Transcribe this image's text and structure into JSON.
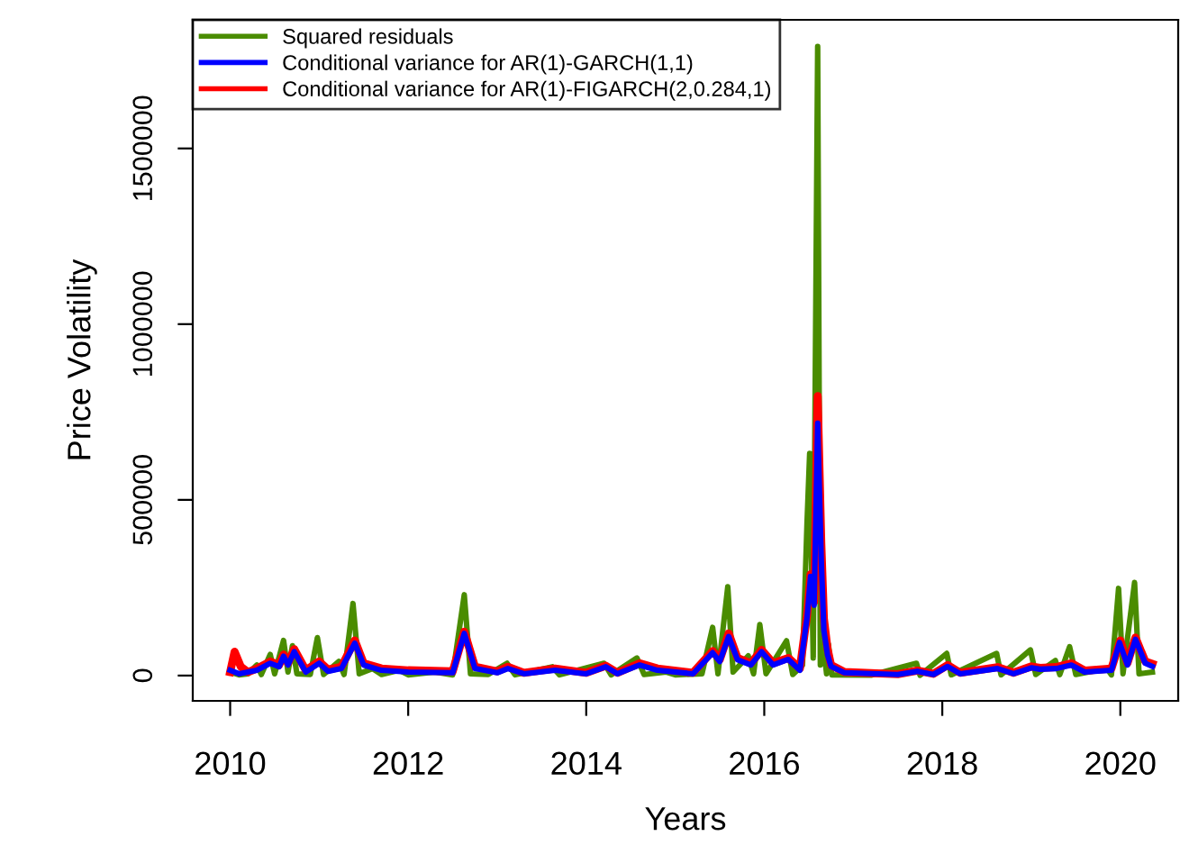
{
  "chart_data": {
    "type": "line",
    "xlabel": "Years",
    "ylabel": "Price Volatility",
    "xlim": [
      2009.58,
      2020.65
    ],
    "xticks": [
      2010,
      2012,
      2014,
      2016,
      2018,
      2020
    ],
    "ylim": [
      -72000,
      1866000
    ],
    "yticks": [
      0,
      500000,
      1000000,
      1500000
    ],
    "grid": false,
    "legend": "top left",
    "line_style": "solid",
    "marker": "none",
    "series": [
      {
        "name": "Squared residuals",
        "color": "#4a8c00",
        "x": [
          2010.0,
          2010.1,
          2010.2,
          2010.3,
          2010.35,
          2010.45,
          2010.5,
          2010.6,
          2010.65,
          2010.7,
          2010.75,
          2010.9,
          2010.98,
          2011.05,
          2011.22,
          2011.28,
          2011.38,
          2011.45,
          2011.6,
          2011.7,
          2011.9,
          2012.0,
          2012.3,
          2012.5,
          2012.63,
          2012.7,
          2012.9,
          2013.11,
          2013.2,
          2013.62,
          2013.7,
          2014.2,
          2014.28,
          2014.57,
          2014.65,
          2014.9,
          2015.0,
          2015.3,
          2015.42,
          2015.48,
          2015.59,
          2015.65,
          2015.82,
          2015.88,
          2015.95,
          2016.02,
          2016.25,
          2016.32,
          2016.43,
          2016.48,
          2016.51,
          2016.55,
          2016.6,
          2016.63,
          2016.66,
          2016.7,
          2016.72,
          2016.76,
          2017.2,
          2017.71,
          2017.75,
          2018.05,
          2018.1,
          2018.61,
          2018.66,
          2018.99,
          2019.05,
          2019.27,
          2019.32,
          2019.43,
          2019.5,
          2019.85,
          2019.9,
          2019.98,
          2020.03,
          2020.16,
          2020.21,
          2020.36
        ],
        "values": [
          10000,
          2000,
          5000,
          30000,
          3000,
          60000,
          5000,
          100000,
          10000,
          85000,
          5000,
          3000,
          108000,
          3000,
          40000,
          3000,
          205000,
          5000,
          20000,
          3000,
          15000,
          2000,
          10000,
          2000,
          230000,
          5000,
          3000,
          35000,
          2000,
          25000,
          2000,
          35000,
          2000,
          50000,
          3000,
          10000,
          2000,
          5000,
          137000,
          5000,
          253000,
          10000,
          56000,
          5000,
          145000,
          5000,
          99000,
          3000,
          30000,
          432000,
          632000,
          50000,
          1790000,
          30000,
          94000,
          5000,
          90000,
          2000,
          1000,
          35000,
          1000,
          63000,
          2000,
          63000,
          2000,
          73000,
          3000,
          43000,
          3000,
          82000,
          3000,
          20000,
          2000,
          248000,
          5000,
          265000,
          5000,
          10000
        ]
      },
      {
        "name": "Conditional variance for AR(1)-GARCH(1,1)",
        "color": "#0000ff",
        "x": [
          2010.0,
          2010.1,
          2010.3,
          2010.45,
          2010.55,
          2010.6,
          2010.65,
          2010.72,
          2010.85,
          2011.0,
          2011.1,
          2011.25,
          2011.4,
          2011.5,
          2011.7,
          2012.0,
          2012.5,
          2012.63,
          2012.75,
          2013.0,
          2013.12,
          2013.3,
          2013.65,
          2014.0,
          2014.22,
          2014.35,
          2014.6,
          2014.8,
          2015.2,
          2015.42,
          2015.5,
          2015.6,
          2015.7,
          2015.85,
          2015.97,
          2016.1,
          2016.27,
          2016.4,
          2016.48,
          2016.52,
          2016.56,
          2016.6,
          2016.64,
          2016.67,
          2016.71,
          2016.75,
          2016.9,
          2017.5,
          2017.72,
          2017.9,
          2018.06,
          2018.2,
          2018.62,
          2018.8,
          2019.0,
          2019.1,
          2019.28,
          2019.45,
          2019.6,
          2019.9,
          2019.99,
          2020.08,
          2020.17,
          2020.28,
          2020.36
        ],
        "values": [
          15000,
          5000,
          15000,
          35000,
          25000,
          55000,
          30000,
          68000,
          10000,
          35000,
          12000,
          20000,
          92000,
          30000,
          15000,
          10000,
          8000,
          120000,
          20000,
          8000,
          20000,
          5000,
          15000,
          5000,
          25000,
          5000,
          30000,
          15000,
          5000,
          65000,
          40000,
          111000,
          45000,
          30000,
          68000,
          30000,
          46000,
          15000,
          164000,
          282000,
          200000,
          718000,
          333000,
          128000,
          60000,
          26000,
          8000,
          3000,
          12000,
          3000,
          26000,
          5000,
          20000,
          5000,
          22000,
          18000,
          20000,
          30000,
          10000,
          15000,
          94000,
          30000,
          103000,
          35000,
          26000
        ]
      },
      {
        "name": "Conditional variance for AR(1)-FIGARCH(2,0.284,1)",
        "color": "#ff0000",
        "x": [
          2010.0,
          2010.05,
          2010.12,
          2010.2,
          2010.3,
          2010.45,
          2010.55,
          2010.6,
          2010.65,
          2010.72,
          2010.85,
          2011.0,
          2011.1,
          2011.25,
          2011.4,
          2011.5,
          2011.7,
          2012.0,
          2012.5,
          2012.63,
          2012.75,
          2013.0,
          2013.12,
          2013.3,
          2013.65,
          2014.0,
          2014.22,
          2014.35,
          2014.6,
          2014.8,
          2015.2,
          2015.42,
          2015.5,
          2015.6,
          2015.7,
          2015.85,
          2015.97,
          2016.1,
          2016.27,
          2016.4,
          2016.48,
          2016.52,
          2016.56,
          2016.6,
          2016.64,
          2016.67,
          2016.71,
          2016.75,
          2016.9,
          2017.5,
          2017.72,
          2017.9,
          2018.06,
          2018.2,
          2018.62,
          2018.8,
          2019.0,
          2019.1,
          2019.28,
          2019.45,
          2019.6,
          2019.9,
          2020.0,
          2020.08,
          2020.17,
          2020.28,
          2020.36
        ],
        "values": [
          10000,
          68000,
          25000,
          10000,
          20000,
          40000,
          30000,
          60000,
          35000,
          75000,
          15000,
          40000,
          17000,
          25000,
          100000,
          35000,
          20000,
          15000,
          12000,
          125000,
          25000,
          12000,
          25000,
          8000,
          20000,
          8000,
          28000,
          8000,
          35000,
          20000,
          8000,
          70000,
          45000,
          120000,
          50000,
          35000,
          73000,
          35000,
          50000,
          20000,
          170000,
          288000,
          210000,
          795000,
          380000,
          162000,
          77000,
          30000,
          10000,
          4000,
          14000,
          5000,
          30000,
          8000,
          24000,
          8000,
          26000,
          22000,
          24000,
          35000,
          14000,
          20000,
          100000,
          35000,
          108000,
          40000,
          33000
        ]
      }
    ]
  }
}
